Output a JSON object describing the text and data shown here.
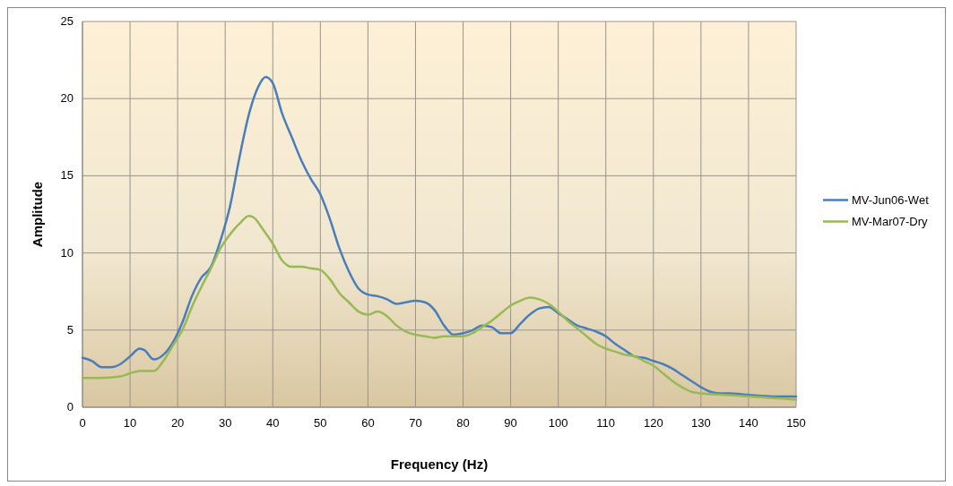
{
  "chart_data": {
    "type": "line",
    "xlabel": "Frequency (Hz)",
    "ylabel": "Amplitude",
    "xlim": [
      0,
      150
    ],
    "xticks": [
      0,
      10,
      20,
      30,
      40,
      50,
      60,
      70,
      80,
      90,
      100,
      110,
      120,
      130,
      140,
      150
    ],
    "ylim": [
      0,
      25
    ],
    "yticks": [
      0,
      5,
      10,
      15,
      20,
      25
    ],
    "grid": true,
    "legend": "right",
    "line_style": "solid",
    "series": [
      {
        "name": "MV-Jun06-Wet",
        "color": "#4a7ebb",
        "x": [
          0,
          2,
          4,
          6,
          8,
          10,
          12,
          13,
          15,
          17,
          19,
          21,
          23,
          25,
          27,
          29,
          31,
          33,
          35,
          37,
          38.5,
          40,
          42,
          44,
          46,
          48,
          50,
          52,
          54,
          56,
          58,
          60,
          62,
          64,
          66,
          68,
          70,
          72,
          74,
          76,
          78,
          80,
          82,
          84,
          86,
          88,
          90,
          92,
          94,
          96,
          98,
          100,
          102,
          104,
          106,
          108,
          110,
          112,
          114,
          116,
          118,
          120,
          122,
          124,
          126,
          128,
          130,
          132,
          134,
          136,
          140,
          145,
          150
        ],
        "values": [
          3.2,
          3.0,
          2.6,
          2.6,
          2.8,
          3.3,
          3.8,
          3.7,
          3.1,
          3.4,
          4.2,
          5.5,
          7.2,
          8.4,
          9.1,
          10.8,
          13.0,
          16.2,
          19.0,
          20.8,
          21.4,
          21.0,
          19.0,
          17.5,
          16.0,
          14.8,
          13.8,
          12.2,
          10.3,
          8.8,
          7.7,
          7.3,
          7.2,
          7.0,
          6.7,
          6.8,
          6.9,
          6.8,
          6.3,
          5.3,
          4.7,
          4.8,
          5.0,
          5.3,
          5.2,
          4.8,
          4.8,
          5.4,
          6.0,
          6.4,
          6.5,
          6.1,
          5.7,
          5.3,
          5.1,
          4.9,
          4.6,
          4.1,
          3.7,
          3.3,
          3.2,
          3.0,
          2.8,
          2.5,
          2.1,
          1.7,
          1.3,
          1.0,
          0.9,
          0.9,
          0.8,
          0.7,
          0.7
        ]
      },
      {
        "name": "MV-Mar07-Dry",
        "color": "#98b954",
        "x": [
          0,
          4,
          8,
          10,
          12,
          15,
          17,
          19,
          21,
          23,
          25,
          27,
          29,
          31,
          33,
          35,
          36,
          38,
          40,
          42,
          44,
          46,
          48,
          50,
          52,
          54,
          56,
          58,
          60,
          62,
          64,
          66,
          68,
          70,
          72,
          74,
          76,
          78,
          80,
          82,
          84,
          86,
          88,
          90,
          92,
          94,
          96,
          98,
          100,
          102,
          104,
          106,
          108,
          110,
          112,
          114,
          116,
          118,
          120,
          122,
          124,
          126,
          128,
          130,
          135,
          140,
          145,
          150
        ],
        "values": [
          1.9,
          1.9,
          2.0,
          2.2,
          2.35,
          2.35,
          3.0,
          4.0,
          5.0,
          6.5,
          7.8,
          9.0,
          10.3,
          11.2,
          11.9,
          12.4,
          12.3,
          11.5,
          10.6,
          9.5,
          9.1,
          9.1,
          9.0,
          8.9,
          8.3,
          7.4,
          6.8,
          6.2,
          6.0,
          6.2,
          5.9,
          5.3,
          4.9,
          4.7,
          4.6,
          4.5,
          4.6,
          4.6,
          4.6,
          4.8,
          5.2,
          5.6,
          6.1,
          6.6,
          6.9,
          7.1,
          7.0,
          6.7,
          6.2,
          5.6,
          5.1,
          4.6,
          4.1,
          3.8,
          3.6,
          3.4,
          3.3,
          3.0,
          2.7,
          2.2,
          1.7,
          1.3,
          1.0,
          0.9,
          0.8,
          0.7,
          0.6,
          0.5
        ]
      }
    ]
  }
}
